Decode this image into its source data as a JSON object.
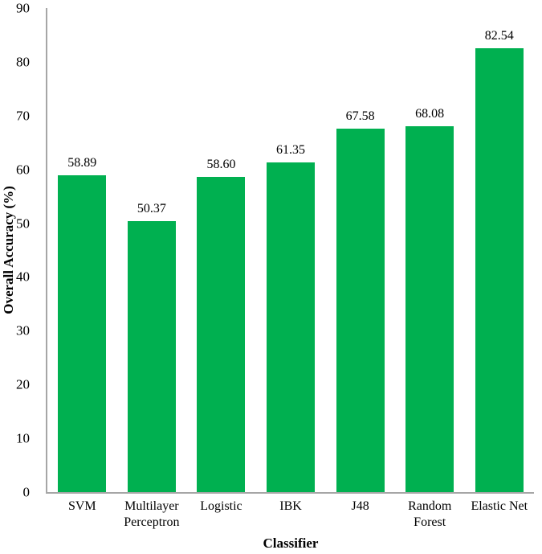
{
  "chart_data": {
    "type": "bar",
    "title": "",
    "xlabel": "Classifier",
    "ylabel": "Overall Accuracy (%)",
    "categories": [
      "SVM",
      "Multilayer Perceptron",
      "Logistic",
      "IBK",
      "J48",
      "Random Forest",
      "Elastic Net"
    ],
    "values": [
      58.89,
      50.37,
      58.6,
      61.35,
      67.58,
      68.08,
      82.54
    ],
    "value_labels": [
      "58.89",
      "50.37",
      "58.60",
      "61.35",
      "67.58",
      "68.08",
      "82.54"
    ],
    "ylim": [
      0,
      90
    ],
    "yticks": [
      0,
      10,
      20,
      30,
      40,
      50,
      60,
      70,
      80,
      90
    ],
    "grid": false,
    "legend_position": "none",
    "bar_color": "#00B050",
    "axis_line_color": "#A6A6A6",
    "text_color": "#000000",
    "background_color": "#ffffff"
  }
}
